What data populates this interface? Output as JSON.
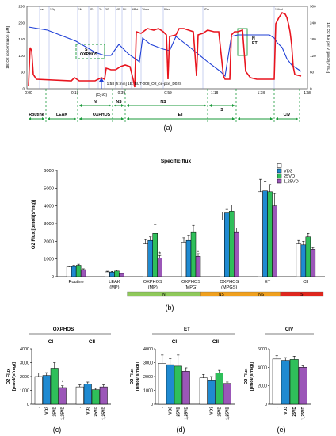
{
  "panel_labels": {
    "a": "(a)",
    "b": "(b)",
    "c": "(c)",
    "d": "(d)",
    "e": "(e)"
  },
  "trace": {
    "left_axis_label": "1B: O2 concentration [µM]",
    "right_axis_label": "1B: O2 flux per V [pmol/(s*mL)]",
    "left_ticks": [
      "0",
      "50",
      "100",
      "150",
      "200",
      "250"
    ],
    "right_ticks": [
      "0",
      "60",
      "120",
      "180",
      "240",
      "300"
    ],
    "time_ticks": [
      "0:00",
      "0:19",
      "0:39",
      "0:59",
      "1:18",
      "1:38",
      "1:58"
    ],
    "x_status": "1:58 [h:min] 1B: BUT-008_O2_ce-pce_D02S",
    "event_markers": [
      "ce1",
      "1Dig",
      "1M",
      "2D",
      "2c",
      "3G",
      "4S",
      "5U",
      "6Rot",
      "7Ama",
      "8Asc",
      "9Tm",
      "10Azd"
    ],
    "annotations": {
      "s_oxphos": "S\nOXPHOS",
      "n_et": "N\nET",
      "cytc": "(CytC)"
    },
    "states_top": [
      "N",
      "NS"
    ],
    "states_bottom": [
      "Routine",
      "LEAK",
      "OXPHOS",
      "ET",
      "CIV"
    ],
    "state_s": "S",
    "state_ns": "NS",
    "colors": {
      "o2": "#1f3fd6",
      "flux": "#e8141e",
      "green": "#1a9a3a"
    }
  },
  "bar_colors": {
    "-": "#ffffff",
    "VD3": "#1f8ad1",
    "25VD": "#2fbf5a",
    "1,25VD": "#9b57b8"
  },
  "panel_b_legend": [
    "-",
    "VD3",
    "25VD",
    "1,25VD"
  ],
  "panel_b_substrate_strip": [
    {
      "label": "N",
      "color": "#8fc95a"
    },
    {
      "label": "NS",
      "color": "#f0a01e"
    },
    {
      "label": "NS",
      "color": "#f0a01e"
    },
    {
      "label": "S",
      "color": "#e0261d"
    }
  ],
  "panel_c_title": "OXPHOS",
  "panel_d_title": "ET",
  "panel_e_title": "CIV",
  "chart_data": [
    {
      "type": "bar",
      "title": "Specific flux",
      "ylabel": "O2 Flux [pmol/(s*mg)]",
      "ylim": [
        0,
        6000
      ],
      "yticks": [
        "0",
        "1000",
        "2000",
        "3000",
        "4000",
        "5000",
        "6000"
      ],
      "categories": [
        "Routine",
        "LEAK\n(MP)",
        "OXPHOS\n(MP)",
        "OXPHOS\n(MPG)",
        "OXPHOS\n(MPGS)",
        "ET",
        "CII"
      ],
      "series": [
        {
          "name": "-",
          "values": [
            550,
            270,
            1850,
            1950,
            3200,
            4800,
            1850
          ],
          "errors": [
            60,
            40,
            250,
            250,
            450,
            700,
            200
          ],
          "sig": [
            "",
            "",
            "",
            "",
            "",
            "",
            ""
          ]
        },
        {
          "name": "VD3",
          "values": [
            580,
            260,
            2050,
            2050,
            3600,
            4850,
            1800
          ],
          "errors": [
            60,
            40,
            200,
            250,
            200,
            550,
            200
          ],
          "sig": [
            "",
            "",
            "",
            "",
            "",
            "",
            ""
          ]
        },
        {
          "name": "25VD",
          "values": [
            650,
            320,
            2450,
            2500,
            3700,
            4800,
            2250
          ],
          "errors": [
            60,
            50,
            500,
            400,
            350,
            400,
            200
          ],
          "sig": [
            "",
            "",
            "",
            "",
            "",
            "",
            ""
          ]
        },
        {
          "name": "1,25VD",
          "values": [
            400,
            180,
            1050,
            1150,
            2500,
            4000,
            1550
          ],
          "errors": [
            50,
            30,
            150,
            150,
            250,
            700,
            100
          ],
          "sig": [
            "",
            "",
            "*",
            "*",
            "",
            "",
            ""
          ]
        }
      ]
    },
    {
      "type": "bar",
      "title": "OXPHOS",
      "ylabel": "O2 Flux [pmol/(s*mg)]",
      "ylim": [
        0,
        4000
      ],
      "yticks": [
        "0",
        "1000",
        "2000",
        "3000",
        "4000"
      ],
      "groups": [
        "CI",
        "CII"
      ],
      "categories": [
        "-",
        "VD3",
        "25VD",
        "1,25VD"
      ],
      "series": [
        {
          "name": "CI",
          "values": [
            2000,
            2080,
            2600,
            1200
          ],
          "errors": [
            250,
            200,
            400,
            130
          ],
          "sig": [
            "",
            "",
            "",
            "*"
          ]
        },
        {
          "name": "CII",
          "values": [
            1250,
            1450,
            1050,
            1250
          ],
          "errors": [
            150,
            150,
            100,
            150
          ],
          "sig": [
            "",
            "",
            "",
            ""
          ]
        }
      ]
    },
    {
      "type": "bar",
      "title": "ET",
      "ylabel": "O2 Flux [pmol/(s*mg)]",
      "ylim": [
        0,
        4000
      ],
      "yticks": [
        "0",
        "1000",
        "2000",
        "3000",
        "4000"
      ],
      "groups": [
        "CI",
        "CII"
      ],
      "categories": [
        "-",
        "VD3",
        "25VD",
        "1,25VD"
      ],
      "series": [
        {
          "name": "CI",
          "values": [
            2950,
            2850,
            2750,
            2380
          ],
          "errors": [
            600,
            450,
            800,
            250
          ],
          "sig": [
            "",
            "",
            "",
            ""
          ]
        },
        {
          "name": "CII",
          "values": [
            1900,
            1750,
            2250,
            1500
          ],
          "errors": [
            250,
            250,
            200,
            100
          ],
          "sig": [
            "",
            "",
            "",
            ""
          ]
        }
      ]
    },
    {
      "type": "bar",
      "title": "CIV",
      "ylabel": "O2 Flux [pmol/(s*mg)]",
      "ylim": [
        0,
        6000
      ],
      "yticks": [
        "0",
        "2000",
        "4000",
        "6000"
      ],
      "groups": [
        "CIV"
      ],
      "categories": [
        "-",
        "VD3",
        "25VD",
        "1,25VD"
      ],
      "series": [
        {
          "name": "CIV",
          "values": [
            4900,
            4750,
            4850,
            4000
          ],
          "errors": [
            350,
            300,
            350,
            150
          ],
          "sig": [
            "",
            "",
            "",
            ""
          ]
        }
      ]
    }
  ]
}
